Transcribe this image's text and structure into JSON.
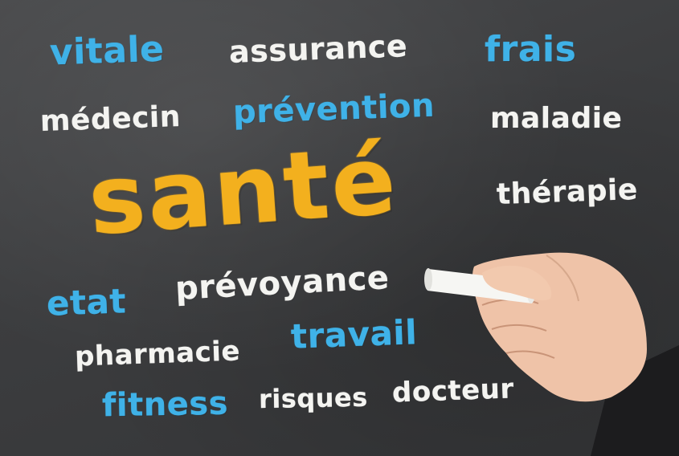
{
  "words": {
    "vitale": "vitale",
    "assurance": "assurance",
    "frais": "frais",
    "medecin": "médecin",
    "prevention": "prévention",
    "maladie": "maladie",
    "sante": "santé",
    "therapie": "thérapie",
    "etat": "etat",
    "prevoyance": "prévoyance",
    "travail": "travail",
    "pharmacie": "pharmacie",
    "fitness": "fitness",
    "risques": "risques",
    "docteur": "docteur"
  },
  "colors": {
    "board": "#3c3d3f",
    "chalk_white": "#f4f4f1",
    "chalk_blue": "#3fb2e8",
    "chalk_orange": "#f3b01e",
    "skin": "#efc3a8",
    "sleeve": "#1c1c1e"
  },
  "illustration": "hand-holding-chalk"
}
